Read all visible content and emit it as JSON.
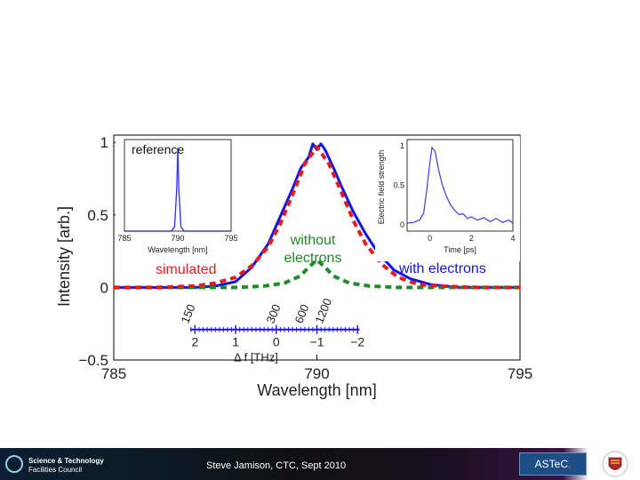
{
  "colors": {
    "blue": "#1414e6",
    "red": "#e61c1c",
    "green": "#1f8a2b",
    "inset_blue": "#3a3af0",
    "astec_bg": "#1d4f86",
    "astec_dot": "#ff5a1e"
  },
  "chart_data": [
    {
      "id": "main",
      "type": "line",
      "xlabel": "Wavelength [nm]",
      "ylabel": "Intensity [arb.]",
      "xlim": [
        785,
        795
      ],
      "ylim": [
        -0.5,
        1.05
      ],
      "xticks": [
        "785",
        "790",
        "795"
      ],
      "yticks": [
        "1",
        "0.5",
        "0",
        "−0.5"
      ],
      "ytick_values": [
        1,
        0.5,
        0,
        -0.5
      ],
      "xtick_values": [
        785,
        790,
        795
      ],
      "series": [
        {
          "name": "with electrons",
          "color": "#1414e6",
          "style": "solid",
          "x": [
            785,
            786,
            787,
            787.5,
            788,
            788.4,
            788.8,
            789.1,
            789.4,
            789.6,
            789.8,
            789.9,
            790,
            790.1,
            790.2,
            790.4,
            790.6,
            790.9,
            791.2,
            791.5,
            791.9,
            792.3,
            792.8,
            793.5,
            795
          ],
          "y": [
            0,
            0,
            0,
            0.01,
            0.04,
            0.14,
            0.3,
            0.49,
            0.68,
            0.82,
            0.9,
            0.99,
            0.95,
            0.99,
            0.95,
            0.83,
            0.7,
            0.52,
            0.37,
            0.24,
            0.12,
            0.06,
            0.02,
            0,
            0
          ]
        },
        {
          "name": "simulated",
          "color": "#e61c1c",
          "style": "dashed",
          "x": [
            785,
            786,
            787,
            787.5,
            788,
            788.4,
            788.8,
            789.1,
            789.4,
            789.7,
            790,
            790.3,
            790.6,
            790.9,
            791.2,
            791.6,
            792,
            792.5,
            793,
            794,
            795
          ],
          "y": [
            0,
            0,
            0.01,
            0.03,
            0.07,
            0.15,
            0.28,
            0.44,
            0.64,
            0.85,
            0.97,
            0.85,
            0.66,
            0.46,
            0.3,
            0.16,
            0.07,
            0.02,
            0.01,
            0,
            0
          ]
        },
        {
          "name": "without electrons",
          "color": "#1f8a2b",
          "style": "dashed",
          "x": [
            785,
            787,
            788,
            788.7,
            789.2,
            789.6,
            789.8,
            790,
            790.2,
            790.4,
            790.8,
            791.3,
            792,
            793,
            795
          ],
          "y": [
            0,
            0,
            0,
            0.01,
            0.03,
            0.08,
            0.14,
            0.19,
            0.14,
            0.08,
            0.03,
            0.01,
            0,
            0,
            0
          ]
        }
      ],
      "annotations": {
        "without": [
          "without",
          "electrons"
        ],
        "with": "with electrons",
        "simulated": "simulated"
      },
      "df_axis": {
        "label": "Δ f [THz]",
        "ticks": [
          "2",
          "1",
          "0",
          "−1",
          "−2"
        ],
        "tick_values": [
          2,
          1,
          0,
          -1,
          -2
        ],
        "y": -0.29,
        "x_at_2": 787.0,
        "x_per_thz": -1.0,
        "labels_rotated": [
          "150",
          "300",
          "600",
          "1200"
        ],
        "labels_rotated_at": [
          786.7,
          788.8,
          789.5,
          790.0
        ]
      }
    },
    {
      "id": "inset_reference",
      "type": "line",
      "title": "reference",
      "xlabel": "Wavelength [nm]",
      "xlim": [
        785,
        795
      ],
      "ylim": [
        0,
        1.1
      ],
      "xticks": [
        "785",
        "790",
        "795"
      ],
      "xtick_values": [
        785,
        790,
        795
      ],
      "series": [
        {
          "name": "reference",
          "color": "#3a3af0",
          "x": [
            785,
            789.4,
            789.7,
            789.9,
            790,
            790.1,
            790.3,
            790.6,
            795
          ],
          "y": [
            0,
            0,
            0.05,
            0.5,
            1,
            0.5,
            0.05,
            0,
            0
          ]
        }
      ]
    },
    {
      "id": "inset_time",
      "type": "line",
      "xlabel": "Time [ps]",
      "ylabel": "Electric field strength",
      "xlim": [
        -1.1,
        4
      ],
      "ylim": [
        -0.08,
        1.08
      ],
      "xticks": [
        "0",
        "2",
        "4"
      ],
      "xtick_values": [
        0,
        2,
        4
      ],
      "yticks": [
        "1",
        "0.5",
        "0"
      ],
      "ytick_values": [
        1,
        0.5,
        0
      ],
      "series": [
        {
          "name": "field",
          "color": "#3a3af0",
          "x": [
            -1.1,
            -0.8,
            -0.5,
            -0.3,
            -0.15,
            0,
            0.1,
            0.25,
            0.4,
            0.6,
            0.8,
            1.0,
            1.2,
            1.4,
            1.6,
            1.8,
            2.0,
            2.3,
            2.6,
            2.9,
            3.2,
            3.5,
            3.8,
            4
          ],
          "y": [
            0.02,
            0.03,
            0.06,
            0.15,
            0.45,
            0.8,
            0.98,
            0.93,
            0.72,
            0.5,
            0.36,
            0.25,
            0.18,
            0.13,
            0.14,
            0.08,
            0.1,
            0.06,
            0.09,
            0.04,
            0.08,
            0.03,
            0.06,
            0.02
          ]
        }
      ]
    }
  ],
  "footer": {
    "org_line1": "Science & Technology",
    "org_line2": "Facilities Council",
    "credit": "Steve Jamison, CTC, Sept 2010",
    "astec_text": "ASTeC",
    "astec_dot": "."
  }
}
